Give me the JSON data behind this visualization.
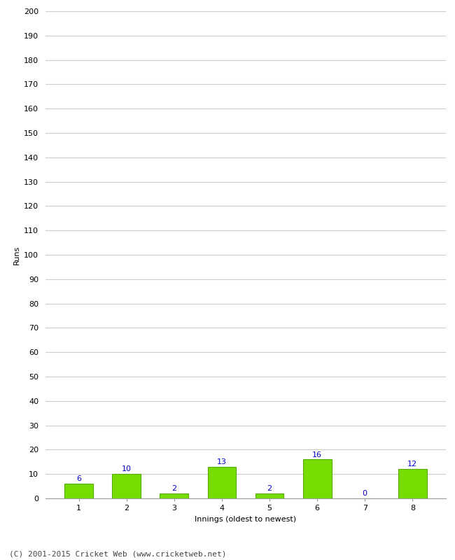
{
  "categories": [
    "1",
    "2",
    "3",
    "4",
    "5",
    "6",
    "7",
    "8"
  ],
  "values": [
    6,
    10,
    2,
    13,
    2,
    16,
    0,
    12
  ],
  "bar_color": "#77dd00",
  "bar_edge_color": "#55aa00",
  "label_color": "#0000cc",
  "xlabel": "Innings (oldest to newest)",
  "ylabel": "Runs",
  "ylim": [
    0,
    200
  ],
  "ytick_step": 10,
  "footer": "(C) 2001-2015 Cricket Web (www.cricketweb.net)",
  "background_color": "#ffffff",
  "grid_color": "#cccccc",
  "label_fontsize": 8,
  "axis_fontsize": 8,
  "footer_fontsize": 8
}
